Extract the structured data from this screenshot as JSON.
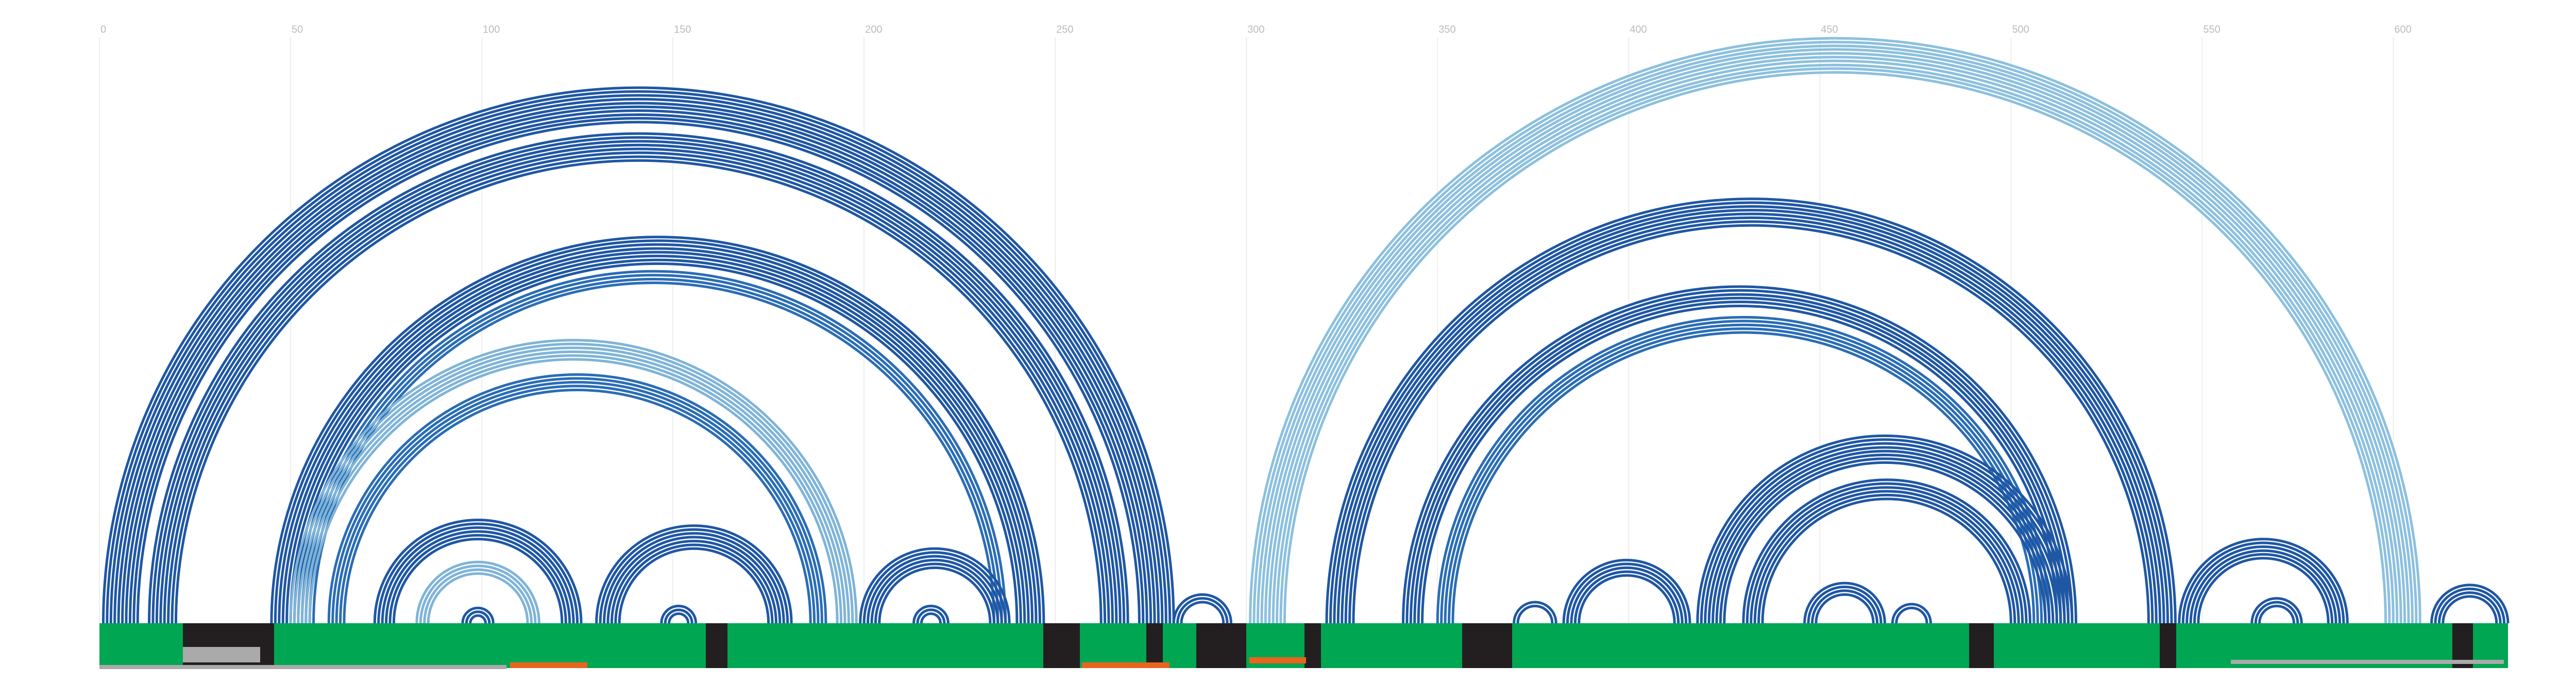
{
  "chart_data": {
    "type": "arc",
    "xlim": [
      0,
      630
    ],
    "xticks": [
      0,
      50,
      100,
      150,
      200,
      250,
      300,
      350,
      400,
      450,
      500,
      550,
      600
    ],
    "grid": true,
    "helices": [
      {
        "i": 1,
        "j": 281,
        "n": 10,
        "color": "#1f57a4"
      },
      {
        "i": 13,
        "j": 269,
        "n": 8,
        "color": "#1f57a4"
      },
      {
        "i": 45,
        "j": 247,
        "n": 8,
        "color": "#1f57a4"
      },
      {
        "i": 53,
        "j": 237,
        "n": 4,
        "color": "#2a6db5"
      },
      {
        "i": 50,
        "j": 198,
        "n": 6,
        "color": "#7fb4d8"
      },
      {
        "i": 60,
        "j": 190,
        "n": 5,
        "color": "#2a6db5"
      },
      {
        "i": 72,
        "j": 126,
        "n": 6,
        "color": "#1f57a4"
      },
      {
        "i": 83,
        "j": 115,
        "n": 4,
        "color": "#7fb4d8"
      },
      {
        "i": 95,
        "j": 103,
        "n": 3,
        "color": "#1f57a4"
      },
      {
        "i": 130,
        "j": 181,
        "n": 7,
        "color": "#1f57a4"
      },
      {
        "i": 147,
        "j": 156,
        "n": 3,
        "color": "#1f57a4"
      },
      {
        "i": 199,
        "j": 238,
        "n": 6,
        "color": "#1f57a4"
      },
      {
        "i": 213,
        "j": 222,
        "n": 3,
        "color": "#1f57a4"
      },
      {
        "i": 281,
        "j": 296,
        "n": 3,
        "color": "#1f57a4"
      },
      {
        "i": 301,
        "j": 607,
        "n": 10,
        "color": "#8cc0de"
      },
      {
        "i": 321,
        "j": 543,
        "n": 8,
        "color": "#1f57a4"
      },
      {
        "i": 341,
        "j": 517,
        "n": 6,
        "color": "#1f57a4"
      },
      {
        "i": 350,
        "j": 510,
        "n": 5,
        "color": "#2a6db5"
      },
      {
        "i": 418,
        "j": 516,
        "n": 8,
        "color": "#1f57a4"
      },
      {
        "i": 430,
        "j": 505,
        "n": 6,
        "color": "#1f57a4"
      },
      {
        "i": 383,
        "j": 416,
        "n": 5,
        "color": "#1f57a4"
      },
      {
        "i": 370,
        "j": 381,
        "n": 2,
        "color": "#1f57a4"
      },
      {
        "i": 446,
        "j": 467,
        "n": 4,
        "color": "#1f57a4"
      },
      {
        "i": 469,
        "j": 479,
        "n": 2,
        "color": "#1f57a4"
      },
      {
        "i": 544,
        "j": 588,
        "n": 6,
        "color": "#1f57a4"
      },
      {
        "i": 563,
        "j": 576,
        "n": 3,
        "color": "#1f57a4"
      },
      {
        "i": 610,
        "j": 630,
        "n": 4,
        "color": "#1f57a4"
      }
    ]
  }
}
